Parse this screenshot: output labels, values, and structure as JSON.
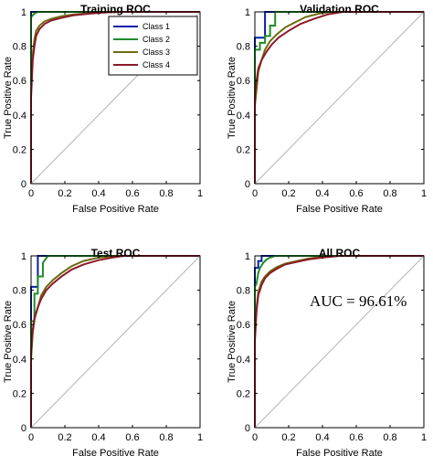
{
  "chart_data": [
    {
      "type": "line",
      "title": "Training ROC",
      "xlabel": "False Positive Rate",
      "ylabel": "True Positive Rate",
      "xlim": [
        0,
        1
      ],
      "ylim": [
        0,
        1
      ],
      "xticks": [
        "0",
        "0.2",
        "0.4",
        "0.6",
        "0.8",
        "1"
      ],
      "yticks": [
        "0",
        "0.2",
        "0.4",
        "0.6",
        "0.8",
        "1"
      ],
      "legend": {
        "placement": "top-right",
        "entries": [
          "Class 1",
          "Class 2",
          "Class 3",
          "Class 4"
        ]
      },
      "series": [
        {
          "name": "Class 1",
          "color": "#0a1fa8",
          "x": [
            0,
            0,
            1
          ],
          "y": [
            0,
            1,
            1
          ]
        },
        {
          "name": "Class 2",
          "color": "#1e8c28",
          "x": [
            0,
            0,
            0.01,
            0.02,
            0.04,
            1
          ],
          "y": [
            0,
            0.97,
            0.98,
            0.99,
            1.0,
            1.0
          ]
        },
        {
          "name": "Class 3",
          "color": "#6b6b10",
          "x": [
            0,
            0,
            0.01,
            0.02,
            0.03,
            0.05,
            0.08,
            0.12,
            0.18,
            0.25,
            0.35,
            0.45,
            1
          ],
          "y": [
            0,
            0.55,
            0.75,
            0.84,
            0.89,
            0.92,
            0.945,
            0.96,
            0.975,
            0.985,
            0.993,
            1.0,
            1.0
          ]
        },
        {
          "name": "Class 4",
          "color": "#8b1a28",
          "x": [
            0,
            0,
            0.01,
            0.02,
            0.03,
            0.05,
            0.08,
            0.12,
            0.18,
            0.25,
            0.35,
            0.45,
            0.55,
            1
          ],
          "y": [
            0,
            0.5,
            0.72,
            0.8,
            0.86,
            0.9,
            0.93,
            0.95,
            0.965,
            0.98,
            0.99,
            0.997,
            1.0,
            1.0
          ]
        },
        {
          "name": "",
          "color": "#b4b4b4",
          "x": [
            0,
            1
          ],
          "y": [
            0,
            1
          ]
        }
      ],
      "annotation": ""
    },
    {
      "type": "line",
      "title": "Validation ROC",
      "xlabel": "False Positive Rate",
      "ylabel": "True Positive Rate",
      "xlim": [
        0,
        1
      ],
      "ylim": [
        0,
        1
      ],
      "xticks": [
        "0",
        "0.2",
        "0.4",
        "0.6",
        "0.8",
        "1"
      ],
      "yticks": [
        "0",
        "0.2",
        "0.4",
        "0.6",
        "0.8",
        "1"
      ],
      "legend": null,
      "series": [
        {
          "name": "Class 1",
          "color": "#0a1fa8",
          "x": [
            0,
            0,
            0.06,
            0.06,
            1
          ],
          "y": [
            0,
            0.85,
            0.85,
            1,
            1
          ]
        },
        {
          "name": "Class 2",
          "color": "#1e8c28",
          "x": [
            0,
            0,
            0.03,
            0.03,
            0.06,
            0.06,
            0.09,
            0.09,
            0.12,
            0.12,
            1
          ],
          "y": [
            0,
            0.78,
            0.78,
            0.82,
            0.82,
            0.86,
            0.86,
            0.92,
            0.92,
            1,
            1
          ]
        },
        {
          "name": "Class 3",
          "color": "#6b6b10",
          "x": [
            0,
            0,
            0.01,
            0.02,
            0.04,
            0.06,
            0.09,
            0.13,
            0.18,
            0.24,
            0.3,
            0.38,
            0.45,
            1
          ],
          "y": [
            0,
            0.45,
            0.55,
            0.65,
            0.72,
            0.78,
            0.83,
            0.87,
            0.91,
            0.94,
            0.97,
            0.99,
            1.0,
            1.0
          ]
        },
        {
          "name": "Class 4",
          "color": "#8b1a28",
          "x": [
            0,
            0,
            0.01,
            0.02,
            0.04,
            0.07,
            0.1,
            0.14,
            0.2,
            0.27,
            0.35,
            0.43,
            0.52,
            1
          ],
          "y": [
            0,
            0.5,
            0.6,
            0.67,
            0.72,
            0.77,
            0.81,
            0.85,
            0.89,
            0.93,
            0.96,
            0.985,
            1.0,
            1.0
          ]
        },
        {
          "name": "",
          "color": "#b4b4b4",
          "x": [
            0,
            1
          ],
          "y": [
            0,
            1
          ]
        }
      ],
      "annotation": ""
    },
    {
      "type": "line",
      "title": "Test ROC",
      "xlabel": "False Positive Rate",
      "ylabel": "True Positive Rate",
      "xlim": [
        0,
        1
      ],
      "ylim": [
        0,
        1
      ],
      "xticks": [
        "0",
        "0.2",
        "0.4",
        "0.6",
        "0.8",
        "1"
      ],
      "yticks": [
        "0",
        "0.2",
        "0.4",
        "0.6",
        "0.8",
        "1"
      ],
      "legend": null,
      "series": [
        {
          "name": "Class 1",
          "color": "#0a1fa8",
          "x": [
            0,
            0,
            0.04,
            0.04,
            1
          ],
          "y": [
            0,
            0.82,
            0.82,
            1,
            1
          ]
        },
        {
          "name": "Class 2",
          "color": "#1e8c28",
          "x": [
            0,
            0,
            0.02,
            0.02,
            0.04,
            0.04,
            0.07,
            0.07,
            0.1,
            1
          ],
          "y": [
            0,
            0.62,
            0.62,
            0.78,
            0.78,
            0.88,
            0.88,
            0.96,
            1.0,
            1.0
          ]
        },
        {
          "name": "Class 3",
          "color": "#6b6b10",
          "x": [
            0,
            0,
            0.01,
            0.02,
            0.04,
            0.06,
            0.09,
            0.13,
            0.18,
            0.24,
            0.31,
            0.4,
            0.5,
            1
          ],
          "y": [
            0,
            0.4,
            0.55,
            0.63,
            0.7,
            0.77,
            0.82,
            0.86,
            0.9,
            0.94,
            0.97,
            0.99,
            1.0,
            1.0
          ]
        },
        {
          "name": "Class 4",
          "color": "#8b1a28",
          "x": [
            0,
            0,
            0.01,
            0.02,
            0.04,
            0.06,
            0.09,
            0.13,
            0.18,
            0.24,
            0.31,
            0.4,
            0.48,
            0.55,
            1
          ],
          "y": [
            0,
            0.45,
            0.57,
            0.64,
            0.7,
            0.75,
            0.8,
            0.84,
            0.88,
            0.92,
            0.95,
            0.975,
            0.99,
            1.0,
            1.0
          ]
        },
        {
          "name": "",
          "color": "#b4b4b4",
          "x": [
            0,
            1
          ],
          "y": [
            0,
            1
          ]
        }
      ],
      "annotation": ""
    },
    {
      "type": "line",
      "title": "All ROC",
      "xlabel": "False Positive Rate",
      "ylabel": "True Positive Rate",
      "xlim": [
        0,
        1
      ],
      "ylim": [
        0,
        1
      ],
      "xticks": [
        "0",
        "0.2",
        "0.4",
        "0.6",
        "0.8",
        "1"
      ],
      "yticks": [
        "0",
        "0.2",
        "0.4",
        "0.6",
        "0.8",
        "1"
      ],
      "legend": null,
      "series": [
        {
          "name": "Class 1",
          "color": "#0a1fa8",
          "x": [
            0,
            0,
            0.02,
            0.02,
            0.04,
            0.04,
            0.06,
            1
          ],
          "y": [
            0,
            0.93,
            0.93,
            0.97,
            0.97,
            1.0,
            1.0,
            1.0
          ]
        },
        {
          "name": "Class 2",
          "color": "#1e8c28",
          "x": [
            0,
            0,
            0.01,
            0.02,
            0.03,
            0.05,
            0.07,
            0.09,
            0.12,
            1
          ],
          "y": [
            0,
            0.82,
            0.84,
            0.9,
            0.93,
            0.96,
            0.98,
            0.99,
            1.0,
            1.0
          ]
        },
        {
          "name": "Class 3",
          "color": "#6b6b10",
          "x": [
            0,
            0,
            0.01,
            0.02,
            0.04,
            0.06,
            0.09,
            0.13,
            0.18,
            0.25,
            0.32,
            0.4,
            0.5,
            1
          ],
          "y": [
            0,
            0.55,
            0.7,
            0.79,
            0.85,
            0.88,
            0.91,
            0.935,
            0.955,
            0.97,
            0.985,
            0.995,
            1.0,
            1.0
          ]
        },
        {
          "name": "Class 4",
          "color": "#8b1a28",
          "x": [
            0,
            0,
            0.01,
            0.02,
            0.04,
            0.06,
            0.09,
            0.13,
            0.18,
            0.25,
            0.32,
            0.4,
            0.5,
            1
          ],
          "y": [
            0,
            0.5,
            0.68,
            0.77,
            0.83,
            0.87,
            0.9,
            0.925,
            0.95,
            0.965,
            0.98,
            0.99,
            1.0,
            1.0
          ]
        },
        {
          "name": "",
          "color": "#b4b4b4",
          "x": [
            0,
            1
          ],
          "y": [
            0,
            1
          ]
        }
      ],
      "annotation": "AUC = 96.61%"
    }
  ]
}
